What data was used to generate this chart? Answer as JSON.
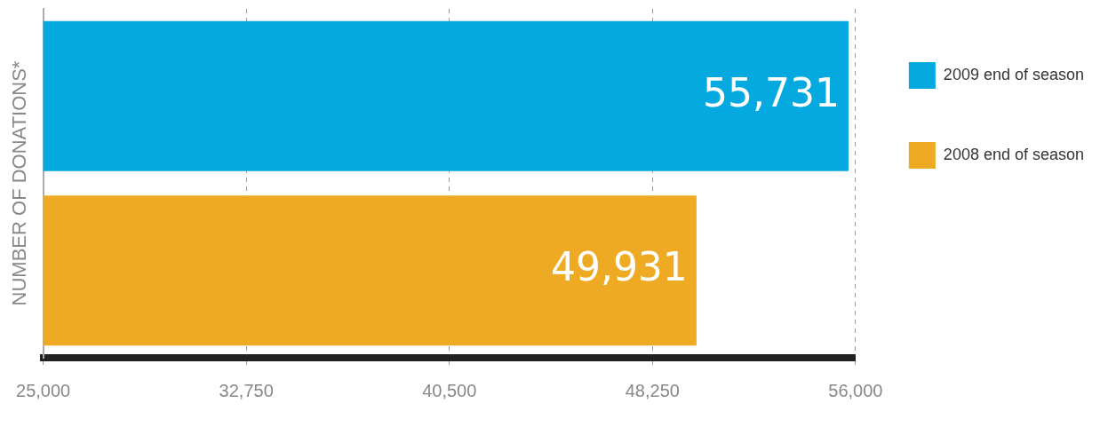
{
  "chart_data": {
    "type": "bar",
    "orientation": "horizontal",
    "ylabel": "NUMBER OF DONATIONS*",
    "categories": [
      null,
      null
    ],
    "series": [
      {
        "name": "2009 end of season",
        "color": "#03a9df",
        "values": [
          55731,
          null
        ],
        "value_labels": [
          "55,731",
          null
        ]
      },
      {
        "name": "2008 end of season",
        "color": "#eeaa22",
        "values": [
          null,
          49931
        ],
        "value_labels": [
          null,
          "49,931"
        ]
      }
    ],
    "xlim": [
      25000,
      56000
    ],
    "xticks": [
      {
        "value": 25000,
        "label": "25,000"
      },
      {
        "value": 32750,
        "label": "32,750"
      },
      {
        "value": 40500,
        "label": "40,500"
      },
      {
        "value": 48250,
        "label": "48,250"
      },
      {
        "value": 56000,
        "label": "56,000"
      }
    ],
    "grid": "x",
    "legend": "right"
  }
}
